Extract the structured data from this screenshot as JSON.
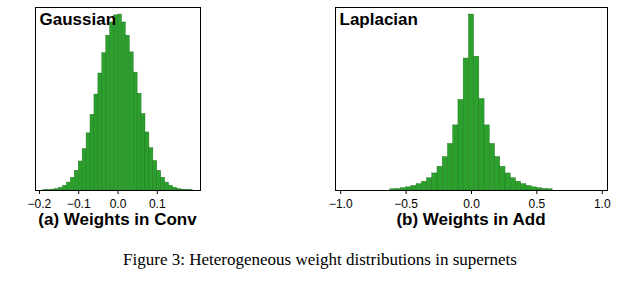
{
  "caption": "Figure 3: Heterogeneous weight distributions in supernets",
  "chart_data": [
    {
      "type": "histogram",
      "title": "Gaussian",
      "x_label": "(a) Weights in Conv",
      "color": "#2ca02c",
      "bins": [
        -0.19,
        -0.18,
        -0.17,
        -0.16,
        -0.15,
        -0.14,
        -0.13,
        -0.12,
        -0.11,
        -0.1,
        -0.09,
        -0.08,
        -0.07,
        -0.06,
        -0.05,
        -0.04,
        -0.03,
        -0.02,
        -0.01,
        0,
        0.01,
        0.02,
        0.03,
        0.04,
        0.05,
        0.06,
        0.07,
        0.08,
        0.09,
        0.1,
        0.11,
        0.12,
        0.13,
        0.14,
        0.15,
        0.16,
        0.17,
        0.18,
        0.19
      ],
      "values": [
        0.2,
        0.3,
        0.5,
        0.9,
        1.6,
        2.7,
        4.5,
        7.2,
        11.2,
        16.5,
        23.5,
        32.5,
        43,
        54.5,
        66.5,
        78,
        88,
        95.5,
        99.5,
        100,
        95.5,
        88,
        78.5,
        67,
        55,
        43.5,
        33,
        24,
        16.8,
        11.2,
        7.2,
        4.5,
        2.7,
        1.6,
        0.9,
        0.5,
        0.3,
        0.2
      ],
      "xlim": [
        -0.21,
        0.21
      ],
      "ylim": [
        0,
        104
      ],
      "xticks": [
        {
          "value": -0.2,
          "label": "−0.2"
        },
        {
          "value": -0.1,
          "label": "−0.1"
        },
        {
          "value": 0,
          "label": "0.0"
        },
        {
          "value": 0.1,
          "label": "0.1"
        }
      ],
      "tick_labels": "x"
    },
    {
      "type": "histogram",
      "title": "Laplacian",
      "x_label": "(b) Weights in Add",
      "color": "#2ca02c",
      "bins": [
        -0.62,
        -0.58,
        -0.54,
        -0.5,
        -0.46,
        -0.42,
        -0.38,
        -0.34,
        -0.3,
        -0.26,
        -0.22,
        -0.18,
        -0.14,
        -0.1,
        -0.06,
        -0.02,
        0.02,
        0.06,
        0.1,
        0.14,
        0.18,
        0.22,
        0.26,
        0.3,
        0.34,
        0.38,
        0.42,
        0.46,
        0.5,
        0.54,
        0.58,
        0.62
      ],
      "values": [
        0.7,
        0.9,
        1.3,
        1.8,
        2.6,
        3.6,
        5,
        7,
        9.7,
        13.5,
        19,
        26.5,
        37,
        51.5,
        75,
        100,
        76,
        52,
        37,
        26.5,
        19,
        13.5,
        9.7,
        7,
        5,
        3.6,
        2.6,
        1.8,
        1.3,
        0.9,
        0.7
      ],
      "xlim": [
        -1.04,
        1.04
      ],
      "ylim": [
        0,
        104
      ],
      "xticks": [
        {
          "value": -1,
          "label": "−1.0"
        },
        {
          "value": -0.5,
          "label": "−0.5"
        },
        {
          "value": 0,
          "label": "0.0"
        },
        {
          "value": 0.5,
          "label": "0.5"
        },
        {
          "value": 1,
          "label": "1.0"
        }
      ],
      "tick_labels": "x"
    }
  ]
}
